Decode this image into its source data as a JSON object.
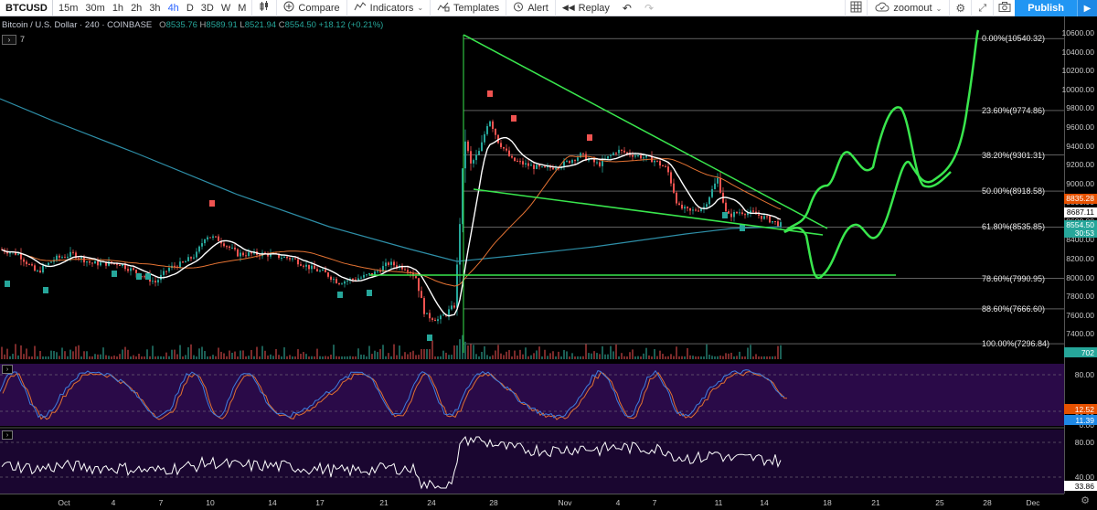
{
  "toolbar": {
    "symbol": "BTCUSD",
    "timeframes": [
      "15m",
      "30m",
      "1h",
      "2h",
      "3h",
      "4h",
      "D",
      "3D",
      "W",
      "M"
    ],
    "active_timeframe": "4h",
    "compare_label": "Compare",
    "indicators_label": "Indicators",
    "templates_label": "Templates",
    "alert_label": "Alert",
    "replay_label": "Replay",
    "layout_name": "zoomout",
    "publish_label": "Publish"
  },
  "legend": {
    "title": "Bitcoin / U.S. Dollar",
    "interval": "240",
    "exchange": "COINBASE",
    "open_label": "O",
    "open": "8535.76",
    "high_label": "H",
    "high": "8589.91",
    "low_label": "L",
    "low": "8521.94",
    "close_label": "C",
    "close": "8554.50",
    "change": "+18.12 (+0.21%)",
    "indicator_count": "7"
  },
  "fib_levels": [
    {
      "label": "0.00%(10540.32)",
      "price": 10540.32
    },
    {
      "label": "23.60%(9774.86)",
      "price": 9774.86
    },
    {
      "label": "38.20%(9301.31)",
      "price": 9301.31
    },
    {
      "label": "50.00%(8918.58)",
      "price": 8918.58
    },
    {
      "label": "61.80%(8535.85)",
      "price": 8535.85
    },
    {
      "label": "78.60%(7990.95)",
      "price": 7990.95
    },
    {
      "label": "88.60%(7666.60)",
      "price": 7666.6
    },
    {
      "label": "100.00%(7296.84)",
      "price": 7296.84
    }
  ],
  "price_axis": [
    "10600.00",
    "10400.00",
    "10200.00",
    "10000.00",
    "9800.00",
    "9600.00",
    "9400.00",
    "9200.00",
    "9000.00",
    "8800.00",
    "8600.00",
    "8400.00",
    "8200.00",
    "8000.00",
    "7800.00",
    "7600.00",
    "7400.00",
    "7200.00"
  ],
  "price_tags": [
    {
      "value": "8835.28",
      "price": 8835.28,
      "color": "#e65100"
    },
    {
      "value": "8690.09",
      "price": 8690.09,
      "color": "#00897b"
    },
    {
      "value": "8687.11",
      "price": 8687.11,
      "color": "#ffffff"
    },
    {
      "value": "8554.50",
      "price": 8554.5,
      "color": "#26a69a"
    },
    {
      "value": "30:53",
      "price": 8470,
      "color": "#26a69a"
    },
    {
      "value": "702",
      "price": 7200,
      "color": "#26a69a"
    }
  ],
  "stoch_axis": [
    "80.00",
    "40.00",
    "20.00",
    "0.00"
  ],
  "stoch_tags": [
    {
      "value": "12.52",
      "color": "#e65100"
    },
    {
      "value": "11.39",
      "color": "#1e88e5"
    }
  ],
  "rsi_axis": [
    "80.00",
    "40.00"
  ],
  "rsi_tag": {
    "value": "33.86",
    "color": "#ffffff"
  },
  "date_axis": [
    "Oct",
    "4",
    "7",
    "10",
    "14",
    "17",
    "21",
    "24",
    "28",
    "Nov",
    "4",
    "7",
    "11",
    "14",
    "18",
    "21",
    "25",
    "28",
    "Dec"
  ],
  "colors": {
    "up": "#26a69a",
    "down": "#ef5350",
    "ma_fast": "#ffffff",
    "ma_mid": "#e57333",
    "ma_slow": "#2e8fa8",
    "drawing": "#39e64d",
    "stoch_bg": "#2a0a48",
    "rsi_bg": "#1a0630"
  }
}
